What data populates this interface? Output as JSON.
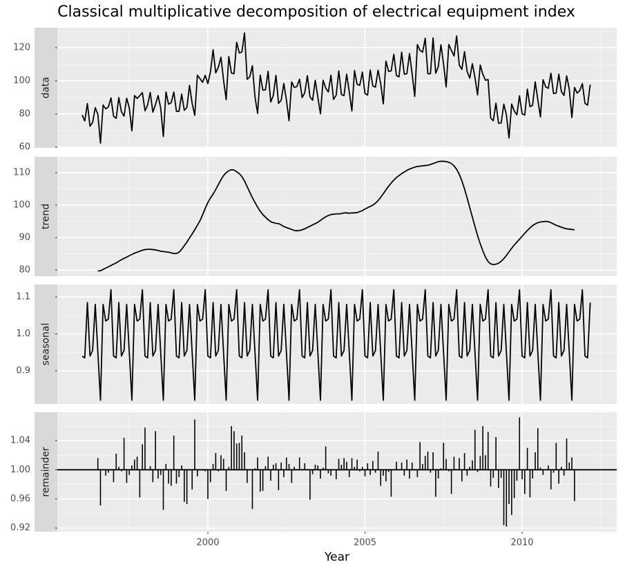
{
  "chart_data": {
    "type": "facet",
    "title": "Classical multiplicative decomposition of electrical equipment index",
    "x_label": "Year",
    "xlim": [
      1995.21,
      2013.01
    ],
    "xticks": [
      2000,
      2005,
      2010
    ],
    "xminor": [
      1997.5,
      2002.5,
      2007.5,
      2012.5
    ],
    "grid": true,
    "color": "#000000",
    "x": [
      1996,
      1996.083,
      1996.167,
      1996.25,
      1996.333,
      1996.417,
      1996.5,
      1996.583,
      1996.667,
      1996.75,
      1996.833,
      1996.917,
      1997,
      1997.083,
      1997.167,
      1997.25,
      1997.333,
      1997.417,
      1997.5,
      1997.583,
      1997.667,
      1997.75,
      1997.833,
      1997.917,
      1998,
      1998.083,
      1998.167,
      1998.25,
      1998.333,
      1998.417,
      1998.5,
      1998.583,
      1998.667,
      1998.75,
      1998.833,
      1998.917,
      1999,
      1999.083,
      1999.167,
      1999.25,
      1999.333,
      1999.417,
      1999.5,
      1999.583,
      1999.667,
      1999.75,
      1999.833,
      1999.917,
      2000,
      2000.083,
      2000.167,
      2000.25,
      2000.333,
      2000.417,
      2000.5,
      2000.583,
      2000.667,
      2000.75,
      2000.833,
      2000.917,
      2001,
      2001.083,
      2001.167,
      2001.25,
      2001.333,
      2001.417,
      2001.5,
      2001.583,
      2001.667,
      2001.75,
      2001.833,
      2001.917,
      2002,
      2002.083,
      2002.167,
      2002.25,
      2002.333,
      2002.417,
      2002.5,
      2002.583,
      2002.667,
      2002.75,
      2002.833,
      2002.917,
      2003,
      2003.083,
      2003.167,
      2003.25,
      2003.333,
      2003.417,
      2003.5,
      2003.583,
      2003.667,
      2003.75,
      2003.833,
      2003.917,
      2004,
      2004.083,
      2004.167,
      2004.25,
      2004.333,
      2004.417,
      2004.5,
      2004.583,
      2004.667,
      2004.75,
      2004.833,
      2004.917,
      2005,
      2005.083,
      2005.167,
      2005.25,
      2005.333,
      2005.417,
      2005.5,
      2005.583,
      2005.667,
      2005.75,
      2005.833,
      2005.917,
      2006,
      2006.083,
      2006.167,
      2006.25,
      2006.333,
      2006.417,
      2006.5,
      2006.583,
      2006.667,
      2006.75,
      2006.833,
      2006.917,
      2007,
      2007.083,
      2007.167,
      2007.25,
      2007.333,
      2007.417,
      2007.5,
      2007.583,
      2007.667,
      2007.75,
      2007.833,
      2007.917,
      2008,
      2008.083,
      2008.167,
      2008.25,
      2008.333,
      2008.417,
      2008.5,
      2008.583,
      2008.667,
      2008.75,
      2008.833,
      2008.917,
      2009,
      2009.083,
      2009.167,
      2009.25,
      2009.333,
      2009.417,
      2009.5,
      2009.583,
      2009.667,
      2009.75,
      2009.833,
      2009.917,
      2010,
      2010.083,
      2010.167,
      2010.25,
      2010.333,
      2010.417,
      2010.5,
      2010.583,
      2010.667,
      2010.75,
      2010.833,
      2010.917,
      2011,
      2011.083,
      2011.167,
      2011.25,
      2011.333,
      2011.417,
      2011.5,
      2011.583,
      2011.667,
      2011.75,
      2011.833,
      2011.917,
      2012,
      2012.083,
      2012.167
    ],
    "panels": [
      {
        "type": "line",
        "name": "data",
        "ylim": [
          59.6,
          132.1
        ],
        "yticks": [
          60,
          80,
          100,
          120
        ],
        "yminor": [
          70,
          90,
          110,
          130
        ],
        "values": [
          79.4,
          75.8,
          86.3,
          72.6,
          74.9,
          83.8,
          79.8,
          62.4,
          85.4,
          83.1,
          84.2,
          89.7,
          78.6,
          77.4,
          89.9,
          81.3,
          78.7,
          89.5,
          83.7,
          69.8,
          91.1,
          89.4,
          91.0,
          92.9,
          81.9,
          85.4,
          93.0,
          81.1,
          85.6,
          91.1,
          83.5,
          66.4,
          93.3,
          85.9,
          86.8,
          93.2,
          81.6,
          81.6,
          92.0,
          82.2,
          83.9,
          97.3,
          86.4,
          79.2,
          103.4,
          101.3,
          99.1,
          103.3,
          98.3,
          105.5,
          118.7,
          104.8,
          108.1,
          114.3,
          100.3,
          88.7,
          114.7,
          104.7,
          104.3,
          123.3,
          116.8,
          117.4,
          128.9,
          100.9,
          102.4,
          109.1,
          90.2,
          80.4,
          103.5,
          94.4,
          94.6,
          105.8,
          87.2,
          91.2,
          103.3,
          86.4,
          88.3,
          98.4,
          88.4,
          75.9,
          99.4,
          96.0,
          96.5,
          101.0,
          89.9,
          92.8,
          103.1,
          90.3,
          88.3,
          100.3,
          90.1,
          80.1,
          100.3,
          95.6,
          93.3,
          103.4,
          88.8,
          91.3,
          106.0,
          91.7,
          91.1,
          104.0,
          93.3,
          81.8,
          106.2,
          97.8,
          97.3,
          105.2,
          92.3,
          91.4,
          106.5,
          96.9,
          96.2,
          106.4,
          98.3,
          86.1,
          111.9,
          105.7,
          106.0,
          116.0,
          103.2,
          102.4,
          117.3,
          104.0,
          104.3,
          116.5,
          104.2,
          90.6,
          121.9,
          118.4,
          117.3,
          125.7,
          104.3,
          104.3,
          125.9,
          104.6,
          108.5,
          121.7,
          110.2,
          96.3,
          121.9,
          118.3,
          115.0,
          127.1,
          109.5,
          106.9,
          117.6,
          105.6,
          101.6,
          110.3,
          102.0,
          91.5,
          109.5,
          104.0,
          100.4,
          100.8,
          77.6,
          75.9,
          86.5,
          74.4,
          74.5,
          85.9,
          79.5,
          65.5,
          86.0,
          81.8,
          79.5,
          91.0,
          80.1,
          79.3,
          95.0,
          84.4,
          85.3,
          99.4,
          88.5,
          78.2,
          100.7,
          96.3,
          95.5,
          104.6,
          92.3,
          92.6,
          104.0,
          93.5,
          91.2,
          103.0,
          95.0,
          77.8,
          96.0,
          92.6,
          94.1,
          98.3,
          86.4,
          85.3,
          97.7
        ]
      },
      {
        "type": "line",
        "name": "trend",
        "ylim": [
          78.1,
          114.9
        ],
        "yticks": [
          80,
          90,
          100,
          110
        ],
        "yminor": [
          85,
          95,
          105
        ],
        "values": [
          null,
          null,
          null,
          null,
          null,
          null,
          79.7,
          79.8,
          80.2,
          80.6,
          81.0,
          81.4,
          81.8,
          82.2,
          82.7,
          83.2,
          83.6,
          84.0,
          84.4,
          84.8,
          85.2,
          85.5,
          85.8,
          86.1,
          86.3,
          86.4,
          86.4,
          86.3,
          86.2,
          86.0,
          85.8,
          85.7,
          85.6,
          85.5,
          85.3,
          85.1,
          85.1,
          85.5,
          86.4,
          87.5,
          88.6,
          89.9,
          91.1,
          92.4,
          93.8,
          95.2,
          97.0,
          99.0,
          100.8,
          102.2,
          103.4,
          104.8,
          106.3,
          107.8,
          109.1,
          110.0,
          110.6,
          110.9,
          110.8,
          110.3,
          109.7,
          108.8,
          107.4,
          105.7,
          104.0,
          102.3,
          100.8,
          99.4,
          98.1,
          97.1,
          96.3,
          95.5,
          94.9,
          94.6,
          94.4,
          94.3,
          93.9,
          93.4,
          93.1,
          92.8,
          92.5,
          92.2,
          92.1,
          92.2,
          92.4,
          92.7,
          93.1,
          93.5,
          93.9,
          94.3,
          94.7,
          95.3,
          95.9,
          96.4,
          96.8,
          97.1,
          97.2,
          97.3,
          97.3,
          97.4,
          97.6,
          97.6,
          97.5,
          97.6,
          97.6,
          97.7,
          98.0,
          98.3,
          98.8,
          99.2,
          99.6,
          100.0,
          100.6,
          101.4,
          102.4,
          103.5,
          104.7,
          105.8,
          106.8,
          107.7,
          108.5,
          109.1,
          109.7,
          110.2,
          110.7,
          111.1,
          111.4,
          111.7,
          111.9,
          112.0,
          112.1,
          112.2,
          112.3,
          112.5,
          112.8,
          113.1,
          113.4,
          113.5,
          113.5,
          113.4,
          113.2,
          112.8,
          112.1,
          111.0,
          109.5,
          107.5,
          105.0,
          102.2,
          99.3,
          96.3,
          93.4,
          90.6,
          88.1,
          85.9,
          84.0,
          82.6,
          81.9,
          81.7,
          81.8,
          82.1,
          82.7,
          83.5,
          84.5,
          85.6,
          86.7,
          87.7,
          88.6,
          89.5,
          90.4,
          91.3,
          92.2,
          93.0,
          93.7,
          94.2,
          94.6,
          94.8,
          94.9,
          95.0,
          94.9,
          94.6,
          94.2,
          93.8,
          93.5,
          93.2,
          92.9,
          92.7,
          92.6,
          92.5,
          92.4,
          null,
          null,
          null,
          null,
          null,
          null
        ]
      },
      {
        "type": "line",
        "name": "seasonal",
        "ylim": [
          0.81,
          1.134
        ],
        "yticks": [
          0.9,
          {
            "value": 1,
            "label": "1.0"
          },
          1.1
        ],
        "yminor": [
          0.95,
          1.05
        ],
        "values": [
          0.94,
          0.935,
          1.085,
          0.94,
          0.955,
          1.08,
          0.95,
          0.82,
          1.08,
          1.035,
          1.04,
          1.12,
          0.94,
          0.935,
          1.085,
          0.94,
          0.955,
          1.08,
          0.95,
          0.82,
          1.08,
          1.035,
          1.04,
          1.12,
          0.94,
          0.935,
          1.085,
          0.94,
          0.955,
          1.08,
          0.95,
          0.82,
          1.08,
          1.035,
          1.04,
          1.12,
          0.94,
          0.935,
          1.085,
          0.94,
          0.955,
          1.08,
          0.95,
          0.82,
          1.08,
          1.035,
          1.04,
          1.12,
          0.94,
          0.935,
          1.085,
          0.94,
          0.955,
          1.08,
          0.95,
          0.82,
          1.08,
          1.035,
          1.04,
          1.12,
          0.94,
          0.935,
          1.085,
          0.94,
          0.955,
          1.08,
          0.95,
          0.82,
          1.08,
          1.035,
          1.04,
          1.12,
          0.94,
          0.935,
          1.085,
          0.94,
          0.955,
          1.08,
          0.95,
          0.82,
          1.08,
          1.035,
          1.04,
          1.12,
          0.94,
          0.935,
          1.085,
          0.94,
          0.955,
          1.08,
          0.95,
          0.82,
          1.08,
          1.035,
          1.04,
          1.12,
          0.94,
          0.935,
          1.085,
          0.94,
          0.955,
          1.08,
          0.95,
          0.82,
          1.08,
          1.035,
          1.04,
          1.12,
          0.94,
          0.935,
          1.085,
          0.94,
          0.955,
          1.08,
          0.95,
          0.82,
          1.08,
          1.035,
          1.04,
          1.12,
          0.94,
          0.935,
          1.085,
          0.94,
          0.955,
          1.08,
          0.95,
          0.82,
          1.08,
          1.035,
          1.04,
          1.12,
          0.94,
          0.935,
          1.085,
          0.94,
          0.955,
          1.08,
          0.95,
          0.82,
          1.08,
          1.035,
          1.04,
          1.12,
          0.94,
          0.935,
          1.085,
          0.94,
          0.955,
          1.08,
          0.95,
          0.82,
          1.08,
          1.035,
          1.04,
          1.12,
          0.94,
          0.935,
          1.085,
          0.94,
          0.955,
          1.08,
          0.95,
          0.82,
          1.08,
          1.035,
          1.04,
          1.12,
          0.94,
          0.935,
          1.085,
          0.94,
          0.955,
          1.08,
          0.95,
          0.82,
          1.08,
          1.035,
          1.04,
          1.12,
          0.94,
          0.935,
          1.085,
          0.94,
          0.955,
          1.08,
          0.95,
          0.82,
          1.08,
          1.035,
          1.04,
          1.12,
          0.94,
          0.935,
          1.085
        ]
      },
      {
        "type": "bar",
        "name": "remainder",
        "ylim": [
          0.915,
          1.079
        ],
        "baseline": 1,
        "yticks": [
          0.92,
          0.96,
          {
            "value": 1,
            "label": "1.00"
          },
          1.04
        ],
        "yminor": [
          0.94,
          0.98,
          1.02,
          1.06
        ],
        "values": [
          null,
          null,
          null,
          null,
          null,
          null,
          1.016,
          0.951,
          1.0,
          0.992,
          0.996,
          0.999,
          0.983,
          1.022,
          1.004,
          0.998,
          1.044,
          0.982,
          0.993,
          1.006,
          1.014,
          1.018,
          0.962,
          1.035,
          1.058,
          1.0,
          1.005,
          0.983,
          1.053,
          0.988,
          0.993,
          0.945,
          1.008,
          0.981,
          0.978,
          1.047,
          0.981,
          0.99,
          1.006,
          0.956,
          0.953,
          0.999,
          0.973,
          1.069,
          0.991,
          0.999,
          1.001,
          0.998,
          0.96,
          0.983,
          1.008,
          1.023,
          0.998,
          1.02,
          1.015,
          0.971,
          1.004,
          1.06,
          1.053,
          1.036,
          1.037,
          1.047,
          1.024,
          0.982,
          1.0,
          0.946,
          1.002,
          1.017,
          0.97,
          0.971,
          1.005,
          1.018,
          0.985,
          1.007,
          1.009,
          0.972,
          1.01,
          0.99,
          1.017,
          1.008,
          0.982,
          1.004,
          1.0,
          1.017,
          1.001,
          1.009,
          1.0,
          0.959,
          0.994,
          1.007,
          1.006,
          0.988,
          1.003,
          1.032,
          0.995,
          0.992,
          1.0,
          0.987,
          1.015,
          1.007,
          1.016,
          1.011,
          0.99,
          1.016,
          1.004,
          1.014,
          0.998,
          1.004,
          0.991,
          1.009,
          0.993,
          1.012,
          0.996,
          1.025,
          0.978,
          0.992,
          0.984,
          0.997,
          0.963,
          1.0,
          1.011,
          1.0,
          1.01,
          0.992,
          1.014,
          0.988,
          1.01,
          1.001,
          0.99,
          1.038,
          1.008,
          1.019,
          1.025,
          0.996,
          1.024,
          0.963,
          0.988,
          1.002,
          1.037,
          1.015,
          0.998,
          0.967,
          1.018,
          1.0,
          1.016,
          0.984,
          1.023,
          0.992,
          1.004,
          1.013,
          1.055,
          0.997,
          1.019,
          1.06,
          1.02,
          1.052,
          0.977,
          0.989,
          1.045,
          0.975,
          0.989,
          0.924,
          0.922,
          0.953,
          0.938,
          0.961,
          0.985,
          1.072,
          0.987,
          0.967,
          1.03,
          0.962,
          0.988,
          1.024,
          1.057,
          1.003,
          0.993,
          1.0,
          1.006,
          0.973,
          0.996,
          1.037,
          0.981,
          1.004,
          0.992,
          1.043,
          1.01,
          1.017,
          0.957,
          null,
          null,
          null,
          null,
          null,
          null
        ]
      }
    ]
  }
}
